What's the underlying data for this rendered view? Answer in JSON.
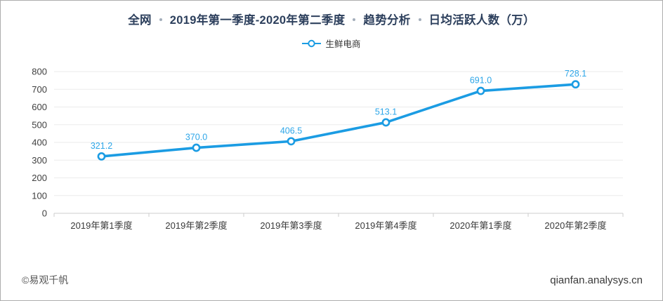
{
  "title": {
    "parts": [
      "全网",
      "2019年第一季度-2020年第二季度",
      "趋势分析",
      "日均活跃人数（万）"
    ]
  },
  "legend": {
    "label": "生鲜电商"
  },
  "chart_data": {
    "type": "line",
    "categories": [
      "2019年第1季度",
      "2019年第2季度",
      "2019年第3季度",
      "2019年第4季度",
      "2020年第1季度",
      "2020年第2季度"
    ],
    "series": [
      {
        "name": "生鲜电商",
        "values": [
          321.2,
          370.0,
          406.5,
          513.1,
          691.0,
          728.1
        ]
      }
    ],
    "title": "全网 · 2019年第一季度-2020年第二季度 · 趋势分析 · 日均活跃人数（万）",
    "xlabel": "",
    "ylabel": "",
    "ylim": [
      0,
      800
    ],
    "ytick_step": 100,
    "grid": true,
    "legend_position": "top-center",
    "colors": {
      "line": "#1b9ce3",
      "marker_fill": "#ffffff",
      "data_label": "#2da6e8",
      "grid_line": "#ebebeb",
      "axis_line": "#cccccc",
      "title_text": "#2c3f5c"
    }
  },
  "footer": {
    "copyright": "©易观千帆",
    "site": "qianfan.analysys.cn"
  }
}
